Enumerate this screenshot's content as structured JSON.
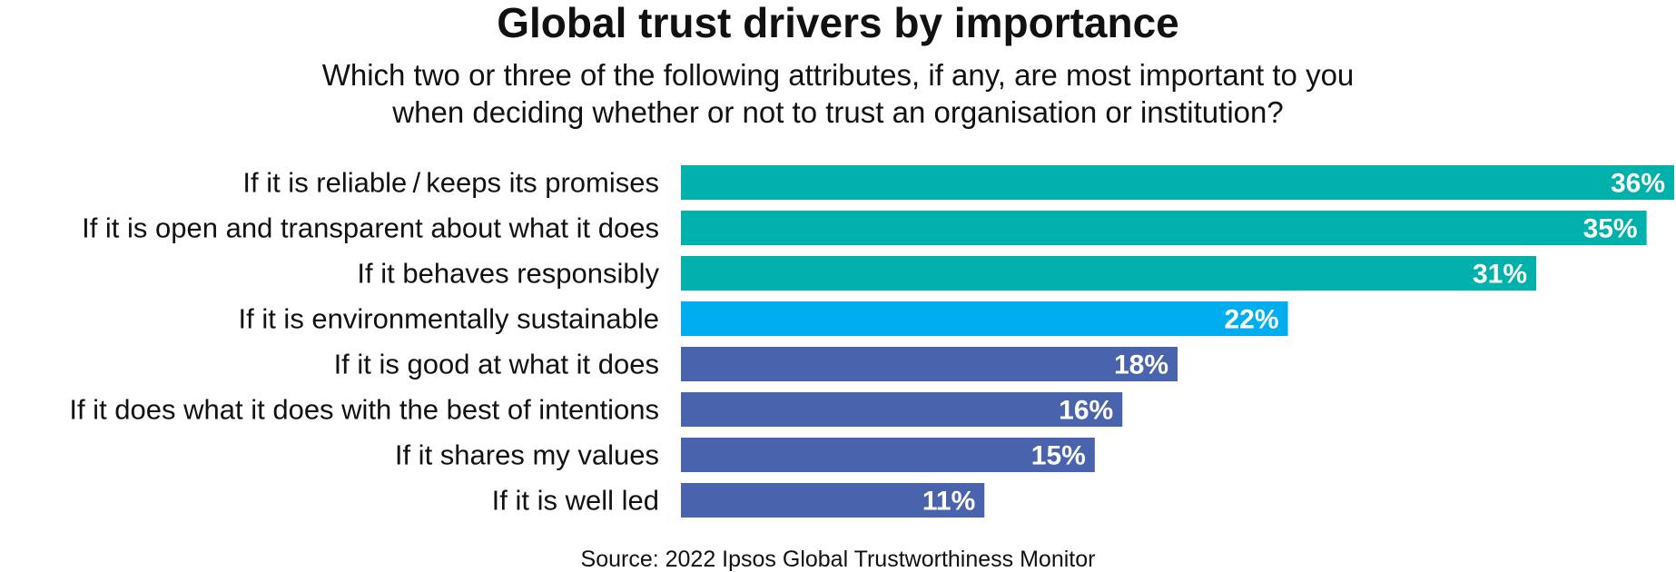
{
  "chart_data": {
    "type": "bar",
    "orientation": "horizontal",
    "title": "Global trust drivers by importance",
    "subtitle": [
      "Which two or three of the following attributes, if any, are most important to you",
      "when deciding whether or not to trust an organisation or institution?"
    ],
    "categories": [
      "If it is reliable / keeps its promises",
      "If it is open and transparent about what it does",
      "If it behaves responsibly",
      "If it is environmentally sustainable",
      "If it is good at what it does",
      "If it does what it does with the best of intentions",
      "If it shares my values",
      "If it is well led"
    ],
    "values": [
      36,
      35,
      31,
      22,
      18,
      16,
      15,
      11
    ],
    "value_labels": [
      "36%",
      "35%",
      "31%",
      "22%",
      "18%",
      "16%",
      "15%",
      "11%"
    ],
    "colors": [
      "#00b0aa",
      "#00b0aa",
      "#00b0aa",
      "#00aeef",
      "#4a63ad",
      "#4a63ad",
      "#4a63ad",
      "#4a63ad"
    ],
    "xlim": [
      0,
      36
    ],
    "grid": false,
    "legend": "none",
    "xlabel": "",
    "ylabel": "",
    "source": "Source: 2022 Ipsos Global Trustworthiness Monitor"
  }
}
